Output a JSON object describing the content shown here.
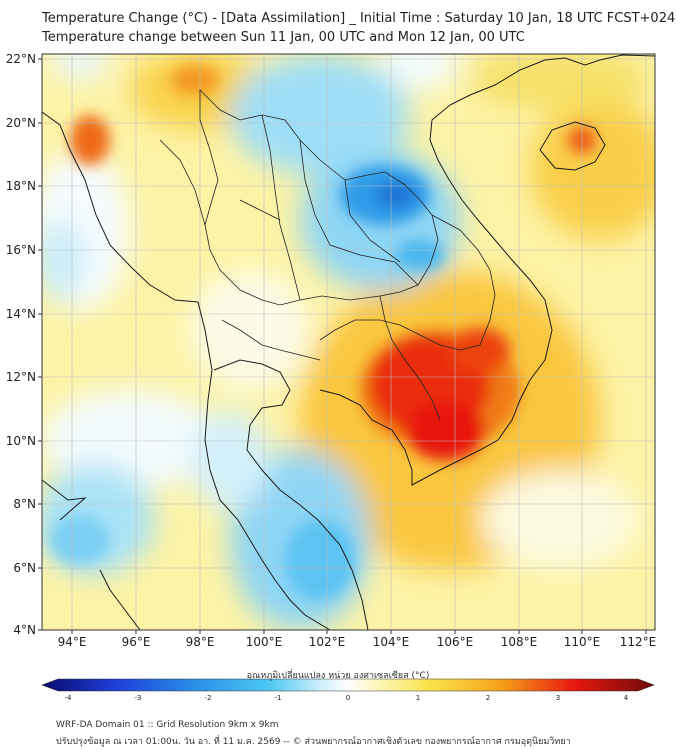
{
  "header": {
    "title_line1": "Temperature Change (°C) - [Data Assimilation] _ Initial Time : Saturday 10 Jan, 18 UTC FCST+024",
    "title_line2": "Temperature change between Sun 11 Jan, 00 UTC and Mon 12 Jan, 00 UTC"
  },
  "map": {
    "lon_labels": [
      "94°E",
      "96°E",
      "98°E",
      "100°E",
      "102°E",
      "104°E",
      "106°E",
      "108°E",
      "110°E",
      "112°E"
    ],
    "lat_labels": [
      "22°N",
      "20°N",
      "18°N",
      "16°N",
      "14°N",
      "12°N",
      "10°N",
      "8°N",
      "6°N",
      "4°N"
    ]
  },
  "colorbar": {
    "label": "อุณหภูมิเปลี่ยนแปลง หน่วย องศาเซลเซียส (°C)",
    "ticks": [
      "-4",
      "-3",
      "-2",
      "-1",
      "0",
      "1",
      "2",
      "3",
      "4"
    ]
  },
  "colors": {
    "strong_warm": "#e8170f",
    "warm": "#f5a21a",
    "mild_warm": "#fbe76a",
    "neutral": "#ffffff",
    "mild_cool": "#a8e4f8",
    "cool": "#2db8ef",
    "strong_cool": "#1a6fd6"
  },
  "footer": {
    "line1": "WRF-DA Domain 01 :: Grid Resolution 9km x 9km",
    "line2": "ปรับปรุงข้อมูล ณ เวลา 01:00น. วัน อา. ที่ 11 ม.ค. 2569 -- © ส่วนพยากรณ์อากาศเชิงตัวเลข กองพยากรณ์อากาศ กรมอุตุนิยมวิทยา"
  }
}
